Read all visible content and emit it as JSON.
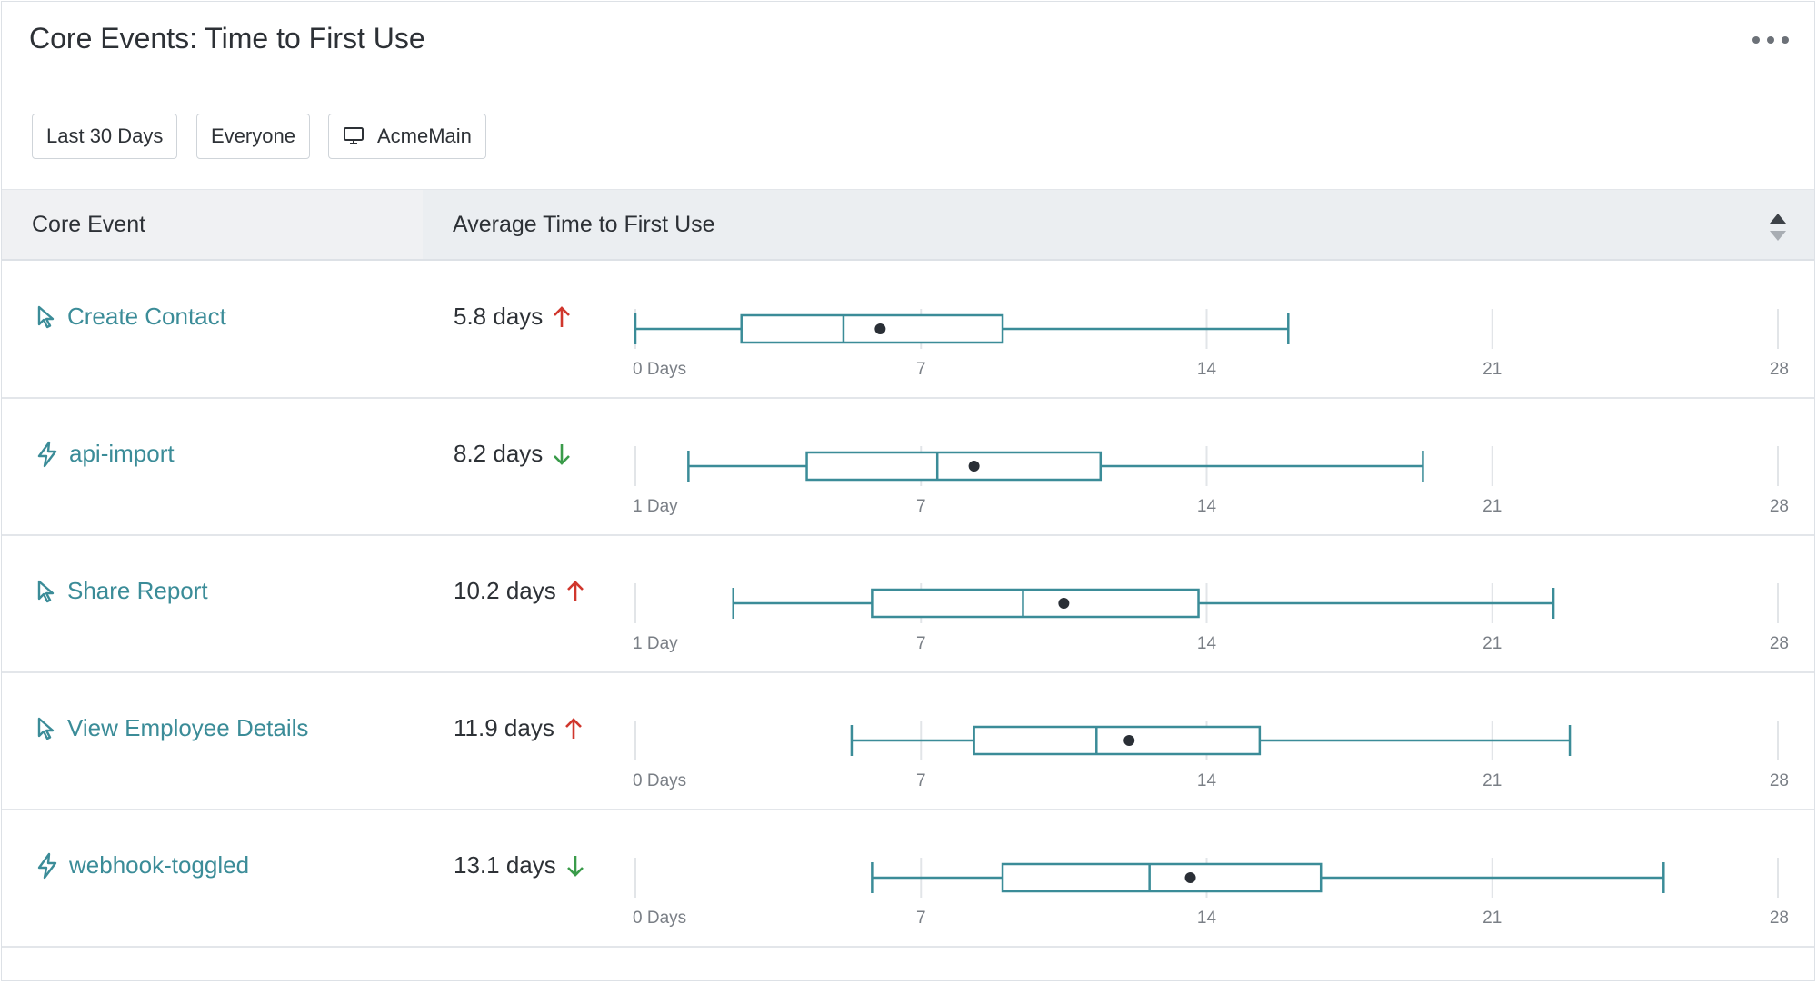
{
  "header": {
    "title": "Core Events: Time to First Use",
    "more_icon": "more-horizontal-icon"
  },
  "filters": [
    {
      "label": "Last 30 Days"
    },
    {
      "label": "Everyone"
    },
    {
      "label": "AcmeMain",
      "icon": "monitor-icon"
    }
  ],
  "table": {
    "col1": "Core Event",
    "col2": "Average Time to First Use",
    "sort_icon": "sort-icon"
  },
  "colors": {
    "accent": "#3b8c98",
    "up": "#d0362c",
    "down": "#3a9b4a",
    "box": "#3b8c98"
  },
  "chart_data": {
    "type": "boxplot",
    "x_ticks": [
      "7",
      "14",
      "21",
      "28"
    ],
    "xlim": [
      0,
      28
    ],
    "rows": [
      {
        "event": "Create Contact",
        "icon": "cursor-icon",
        "avg": "5.8 days",
        "trend": "up",
        "axis_start": "0 Days",
        "whisker_low": 0,
        "q1": 2.6,
        "median": 5.1,
        "mean": 6.0,
        "q3": 9.0,
        "whisker_high": 16.0
      },
      {
        "event": "api-import",
        "icon": "bolt-icon",
        "avg": "8.2 days",
        "trend": "down",
        "axis_start": "1 Day",
        "whisker_low": 1.3,
        "q1": 4.2,
        "median": 7.4,
        "mean": 8.3,
        "q3": 11.4,
        "whisker_high": 19.3
      },
      {
        "event": "Share Report",
        "icon": "cursor-icon",
        "avg": "10.2 days",
        "trend": "up",
        "axis_start": "1 Day",
        "whisker_low": 2.4,
        "q1": 5.8,
        "median": 9.5,
        "mean": 10.5,
        "q3": 13.8,
        "whisker_high": 22.5
      },
      {
        "event": "View Employee Details",
        "icon": "cursor-icon",
        "avg": "11.9 days",
        "trend": "up",
        "axis_start": "0 Days",
        "whisker_low": 5.3,
        "q1": 8.3,
        "median": 11.3,
        "mean": 12.1,
        "q3": 15.3,
        "whisker_high": 22.9
      },
      {
        "event": "webhook-toggled",
        "icon": "bolt-icon",
        "avg": "13.1 days",
        "trend": "down",
        "axis_start": "0 Days",
        "whisker_low": 5.8,
        "q1": 9.0,
        "median": 12.6,
        "mean": 13.6,
        "q3": 16.8,
        "whisker_high": 25.2
      }
    ]
  }
}
